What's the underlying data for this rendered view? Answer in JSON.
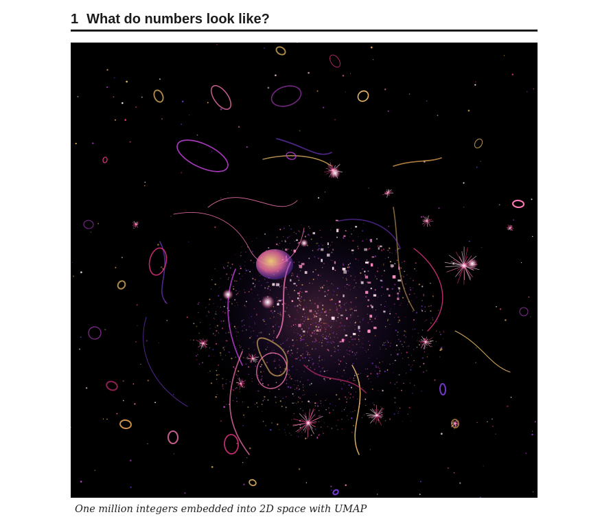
{
  "section": {
    "number": "1",
    "title": "What do numbers look like?"
  },
  "figure": {
    "caption": "One million integers embedded into 2D space with UMAP",
    "background": "#000000",
    "palette": [
      "#ffffff",
      "#ffd9e8",
      "#ff7ab8",
      "#e0337f",
      "#b13cc7",
      "#7a3bd6",
      "#f6c36b",
      "#d89a4e"
    ]
  }
}
